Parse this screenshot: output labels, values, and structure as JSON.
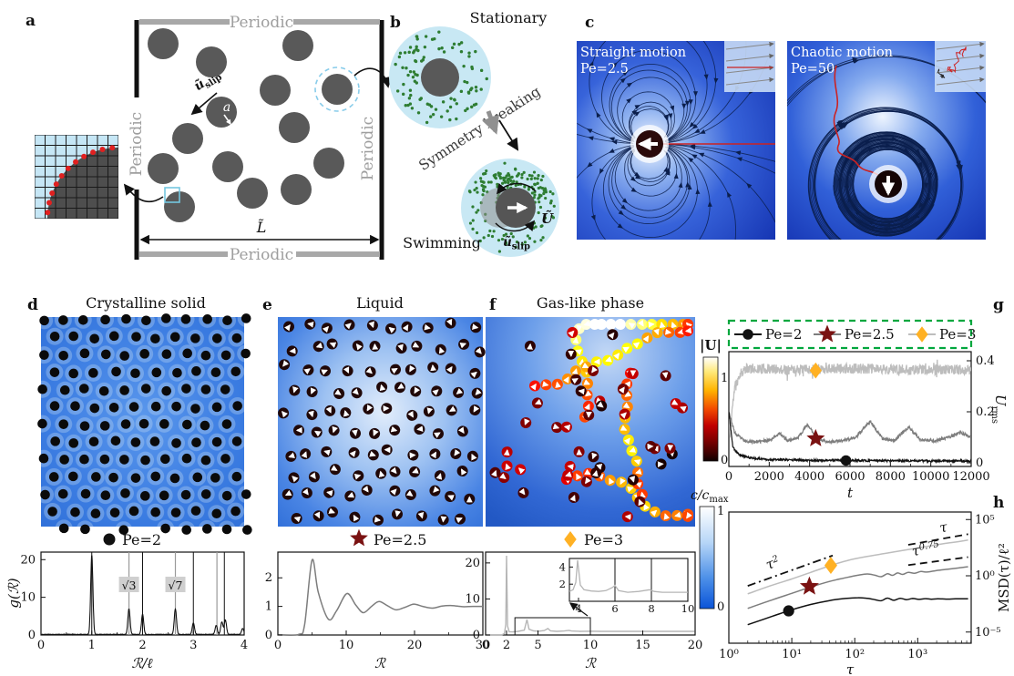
{
  "panel_a": {
    "label": "a",
    "periodic": "Periodic",
    "u_slip_base": "ũ",
    "u_slip_sub": "slip",
    "radius_label": "a",
    "length_label": "L̃"
  },
  "panel_b": {
    "label": "b",
    "stationary": "Stationary",
    "symmetry_breaking": "Symmetry breaking",
    "swimming": "Swimming",
    "u_slip_base": "ũ",
    "u_slip_sub": "slip",
    "velocity_label": "Ũ"
  },
  "panel_c": {
    "label": "c",
    "left_title": "Straight motion",
    "left_pe": "Pe=2.5",
    "right_title": "Chaotic motion",
    "right_pe": "Pe=50"
  },
  "panel_d": {
    "label": "d",
    "title": "Crystalline solid",
    "legend_label": "Pe=2"
  },
  "panel_e": {
    "label": "e",
    "title": "Liquid",
    "legend_label": "Pe=2.5"
  },
  "panel_f": {
    "label": "f",
    "title": "Gas-like phase",
    "legend_label": "Pe=3",
    "colorbar_u": {
      "title": "|U|",
      "max": "1",
      "min": "0"
    },
    "colorbar_c": {
      "title_base": "c/c",
      "title_sub": "max",
      "max": "1",
      "min": "0"
    }
  },
  "panel_g": {
    "label": "g",
    "ylabel_base": "U",
    "ylabel_sub": "rms"
  },
  "panel_h": {
    "label": "h",
    "ylabel": "MSD(τ)/ℓ²"
  },
  "colors": {
    "particle_gray": "#595959",
    "droplet_blue": "#c8e8f4",
    "solute_green": "#2e7d32",
    "trajectory_red": "#cc2222",
    "dark_red_marker": "#7a1212",
    "orange_marker": "#ffb124",
    "legend_box_green": "#00a73e",
    "curve_black": "#111111",
    "curve_gray": "#7d7d7d",
    "curve_lightgray": "#bdbdbd"
  },
  "chart_data": [
    {
      "id": "g_of_r_crystal",
      "type": "line",
      "series_label": "Pe=2",
      "xlabel": "ℛ/ℓ",
      "ylabel": "g(ℛ)",
      "xlim": [
        0,
        4
      ],
      "ylim": [
        0,
        22
      ],
      "xticks": [
        0,
        1,
        2,
        3,
        4
      ],
      "yticks": [
        0,
        10,
        20
      ],
      "ref_lines_black": [
        1,
        2,
        3,
        3.61
      ],
      "ref_lines_gray": [
        1.732,
        2.646,
        3.464
      ],
      "annotations": [
        {
          "text": "√3",
          "x": 1.732
        },
        {
          "text": "√7",
          "x": 2.646
        }
      ],
      "peaks": [
        [
          1,
          21
        ],
        [
          1.732,
          6.8
        ],
        [
          2,
          5.4
        ],
        [
          2.646,
          6.8
        ],
        [
          3,
          3.1
        ],
        [
          3.45,
          2.4
        ],
        [
          3.56,
          3.3
        ],
        [
          3.63,
          3.9
        ],
        [
          3.97,
          1.6
        ]
      ],
      "baseline": 0.15,
      "peak_sigma": 0.022,
      "line_color": "#111111"
    },
    {
      "id": "g_of_r_liquid",
      "type": "line",
      "series_label": "Pe=2.5",
      "xlabel": "ℛ",
      "ylabel": "",
      "xlim": [
        0,
        30
      ],
      "ylim": [
        0,
        2.9
      ],
      "xticks": [
        0,
        10,
        20,
        30
      ],
      "yticks": [
        0,
        1,
        2
      ],
      "points": [
        [
          0,
          0.01
        ],
        [
          3,
          0.02
        ],
        [
          3.9,
          0.35
        ],
        [
          5,
          2.62
        ],
        [
          5.9,
          1.5
        ],
        [
          7.4,
          0.55
        ],
        [
          8.6,
          0.85
        ],
        [
          10.1,
          1.45
        ],
        [
          11.4,
          1.05
        ],
        [
          12.5,
          0.78
        ],
        [
          13.7,
          1.0
        ],
        [
          14.8,
          1.17
        ],
        [
          16,
          1.03
        ],
        [
          17.3,
          0.88
        ],
        [
          18.6,
          0.97
        ],
        [
          19.9,
          1.08
        ],
        [
          21.2,
          1.0
        ],
        [
          22.6,
          0.94
        ],
        [
          24,
          1.01
        ],
        [
          25.5,
          1.03
        ],
        [
          27,
          0.99
        ],
        [
          28.5,
          1.0
        ],
        [
          30,
          1.0
        ]
      ],
      "line_color": "#7d7d7d"
    },
    {
      "id": "g_of_r_gas",
      "type": "line",
      "series_label": "Pe=3",
      "xlabel": "ℛ",
      "ylabel": "",
      "xlim": [
        0,
        20
      ],
      "ylim": [
        0,
        23
      ],
      "xticks": [
        0,
        2,
        5,
        10,
        15,
        20
      ],
      "yticks": [
        0,
        10,
        20
      ],
      "points": [
        [
          0,
          0.02
        ],
        [
          1.55,
          0.02
        ],
        [
          1.8,
          0.4
        ],
        [
          1.93,
          3
        ],
        [
          2.0,
          22
        ],
        [
          2.1,
          2.5
        ],
        [
          2.25,
          0.9
        ],
        [
          2.6,
          0.85
        ],
        [
          3.1,
          1.0
        ],
        [
          3.7,
          1.35
        ],
        [
          3.95,
          4.3
        ],
        [
          4.15,
          1.6
        ],
        [
          4.6,
          1.15
        ],
        [
          5.1,
          1.05
        ],
        [
          5.6,
          1.25
        ],
        [
          5.95,
          1.8
        ],
        [
          6.2,
          1.15
        ],
        [
          6.8,
          1.0
        ],
        [
          7.5,
          1.1
        ],
        [
          7.95,
          1.3
        ],
        [
          8.2,
          1.1
        ],
        [
          9,
          1.02
        ],
        [
          10,
          1.05
        ],
        [
          11,
          1.0
        ],
        [
          12.5,
          1.0
        ],
        [
          14,
          1.0
        ],
        [
          16,
          1.0
        ],
        [
          18,
          1.0
        ],
        [
          20,
          1.0
        ]
      ],
      "line_color": "#b5b5b5",
      "zoom_rect": [
        2.8,
        0,
        10,
        4.8
      ],
      "inset": {
        "xlim": [
          3.5,
          10
        ],
        "ylim": [
          0,
          5
        ],
        "xticks": [
          4,
          6,
          8,
          10
        ],
        "yticks": [
          2,
          4
        ],
        "ref_lines": [
          6,
          8
        ],
        "points": [
          [
            3.5,
            1.15
          ],
          [
            3.7,
            1.35
          ],
          [
            3.85,
            2.2
          ],
          [
            3.95,
            4.8
          ],
          [
            4.1,
            1.9
          ],
          [
            4.3,
            1.35
          ],
          [
            4.7,
            1.2
          ],
          [
            5.1,
            1.15
          ],
          [
            5.5,
            1.25
          ],
          [
            5.85,
            1.6
          ],
          [
            6.0,
            1.85
          ],
          [
            6.2,
            1.25
          ],
          [
            6.7,
            1.05
          ],
          [
            7.3,
            1.15
          ],
          [
            7.9,
            1.35
          ],
          [
            8.15,
            1.15
          ],
          [
            8.6,
            1.05
          ],
          [
            9.2,
            1.05
          ],
          [
            10,
            1.05
          ]
        ],
        "line_color": "#b5b5b5"
      }
    },
    {
      "id": "urms",
      "type": "line",
      "xlabel": "t",
      "ylabel": "U_rms",
      "xlim": [
        0,
        12000
      ],
      "ylim": [
        -0.05,
        0.44
      ],
      "xticks": [
        0,
        2000,
        4000,
        6000,
        8000,
        10000,
        12000
      ],
      "yticks": [
        0,
        0.2,
        0.4
      ],
      "legend": [
        {
          "label": "Pe=2",
          "line_color": "#111111",
          "marker": "circle",
          "marker_color": "#111111"
        },
        {
          "label": "Pe=2.5",
          "line_color": "#7d7d7d",
          "marker": "star",
          "marker_color": "#7a1212"
        },
        {
          "label": "Pe=3",
          "line_color": "#bdbdbd",
          "marker": "diamond",
          "marker_color": "#ffb124"
        }
      ],
      "series": [
        {
          "name": "Pe=3",
          "color": "#bdbdbd",
          "noise": 0.02,
          "base": [
            [
              0,
              0.18
            ],
            [
              60,
              0.1
            ],
            [
              150,
              0.2
            ],
            [
              300,
              0.3
            ],
            [
              600,
              0.355
            ],
            [
              900,
              0.37
            ],
            [
              3000,
              0.365
            ],
            [
              6000,
              0.37
            ],
            [
              9000,
              0.365
            ],
            [
              12000,
              0.365
            ]
          ],
          "marker": {
            "shape": "diamond",
            "x": 4300,
            "y": 0.362,
            "color": "#ffb124"
          }
        },
        {
          "name": "Pe=2.5",
          "color": "#7d7d7d",
          "noise": 0.006,
          "base": [
            [
              0,
              0.2
            ],
            [
              300,
              0.115
            ],
            [
              800,
              0.085
            ],
            [
              1500,
              0.082
            ],
            [
              2100,
              0.092
            ],
            [
              2500,
              0.115
            ],
            [
              2900,
              0.088
            ],
            [
              3400,
              0.097
            ],
            [
              3900,
              0.15
            ],
            [
              4400,
              0.092
            ],
            [
              5000,
              0.082
            ],
            [
              5600,
              0.086
            ],
            [
              6300,
              0.1
            ],
            [
              7000,
              0.163
            ],
            [
              7600,
              0.095
            ],
            [
              8200,
              0.088
            ],
            [
              8900,
              0.14
            ],
            [
              9500,
              0.09
            ],
            [
              10200,
              0.086
            ],
            [
              10800,
              0.098
            ],
            [
              11500,
              0.118
            ],
            [
              12000,
              0.1
            ]
          ],
          "marker": {
            "shape": "star",
            "x": 4300,
            "y": 0.095,
            "color": "#7a1212"
          }
        },
        {
          "name": "Pe=2",
          "color": "#111111",
          "noise": 0.004,
          "base": [
            [
              0,
              0.2
            ],
            [
              200,
              0.06
            ],
            [
              500,
              0.032
            ],
            [
              1000,
              0.02
            ],
            [
              2000,
              0.013
            ],
            [
              4000,
              0.01
            ],
            [
              8000,
              0.008
            ],
            [
              12000,
              0.007
            ]
          ],
          "marker": {
            "shape": "circle",
            "x": 5800,
            "y": 0.009,
            "color": "#111111"
          }
        }
      ]
    },
    {
      "id": "msd",
      "type": "line",
      "xscale": "log",
      "yscale": "log",
      "xlabel": "τ",
      "ylabel": "MSD(τ)/ℓ²",
      "xlim_exp": [
        0.26,
        3.85
      ],
      "ylim_exp": [
        -5.3,
        5.3
      ],
      "xticks": [
        {
          "exp": 0,
          "label": "10⁰"
        },
        {
          "exp": 1,
          "label": "10¹"
        },
        {
          "exp": 2,
          "label": "10²"
        },
        {
          "exp": 3,
          "label": "10³"
        }
      ],
      "yticks": [
        {
          "exp": 5,
          "label": "10⁵"
        },
        {
          "exp": 0,
          "label": "10⁰"
        },
        {
          "exp": -5,
          "label": "10⁻⁵"
        }
      ],
      "series": [
        {
          "name": "Pe=3",
          "color": "#bdbdbd",
          "points_exp": [
            [
              0.3,
              -1.6
            ],
            [
              0.7,
              -0.82
            ],
            [
              1.0,
              -0.28
            ],
            [
              1.3,
              0.3
            ],
            [
              1.6,
              0.88
            ],
            [
              1.9,
              1.38
            ],
            [
              2.2,
              1.72
            ],
            [
              2.5,
              2.0
            ],
            [
              2.8,
              2.28
            ],
            [
              3.1,
              2.56
            ],
            [
              3.4,
              2.84
            ],
            [
              3.6,
              3.0
            ],
            [
              3.8,
              3.18
            ]
          ],
          "marker": {
            "shape": "diamond",
            "x_exp": 1.62,
            "y_exp": 0.92,
            "color": "#ffb124"
          }
        },
        {
          "name": "Pe=2.5",
          "color": "#7d7d7d",
          "points_exp": [
            [
              0.3,
              -2.9
            ],
            [
              0.7,
              -2.12
            ],
            [
              1.0,
              -1.56
            ],
            [
              1.3,
              -1.0
            ],
            [
              1.6,
              -0.5
            ],
            [
              1.85,
              -0.18
            ],
            [
              2.05,
              0.05
            ],
            [
              2.2,
              0.16
            ],
            [
              2.32,
              0.05
            ],
            [
              2.42,
              -0.08
            ],
            [
              2.52,
              0.18
            ],
            [
              2.6,
              0.04
            ],
            [
              2.68,
              0.25
            ],
            [
              2.76,
              0.12
            ],
            [
              2.85,
              0.3
            ],
            [
              2.95,
              0.22
            ],
            [
              3.05,
              0.38
            ],
            [
              3.15,
              0.33
            ],
            [
              3.3,
              0.47
            ],
            [
              3.5,
              0.6
            ],
            [
              3.65,
              0.7
            ],
            [
              3.8,
              0.8
            ]
          ],
          "marker": {
            "shape": "star",
            "x_exp": 1.28,
            "y_exp": -0.95,
            "color": "#7a1212"
          }
        },
        {
          "name": "Pe=2",
          "color": "#111111",
          "points_exp": [
            [
              0.3,
              -4.35
            ],
            [
              0.7,
              -3.58
            ],
            [
              1.0,
              -3.02
            ],
            [
              1.3,
              -2.55
            ],
            [
              1.6,
              -2.2
            ],
            [
              1.85,
              -2.02
            ],
            [
              2.05,
              -1.95
            ],
            [
              2.2,
              -2.0
            ],
            [
              2.32,
              -2.12
            ],
            [
              2.42,
              -2.22
            ],
            [
              2.52,
              -1.98
            ],
            [
              2.62,
              -2.18
            ],
            [
              2.72,
              -2.0
            ],
            [
              2.82,
              -2.12
            ],
            [
              2.92,
              -2.02
            ],
            [
              3.02,
              -2.1
            ],
            [
              3.12,
              -2.03
            ],
            [
              3.22,
              -2.08
            ],
            [
              3.32,
              -2.04
            ],
            [
              3.45,
              -2.07
            ],
            [
              3.6,
              -2.05
            ],
            [
              3.8,
              -2.05
            ]
          ],
          "marker": {
            "shape": "circle",
            "x_exp": 0.95,
            "y_exp": -3.12,
            "color": "#111111"
          }
        }
      ],
      "guides": [
        {
          "base": "τ",
          "sup": "2",
          "style": "dashdot",
          "p1": [
            0.3,
            -0.9
          ],
          "p2": [
            1.65,
            1.8
          ],
          "label_at": [
            0.72,
            0.75
          ],
          "label_rot": -20
        },
        {
          "base": "τ",
          "sup": "",
          "style": "dash",
          "p1": [
            2.85,
            2.75
          ],
          "p2": [
            3.8,
            3.7
          ],
          "label_at": [
            3.42,
            3.9
          ],
          "label_rot": -10
        },
        {
          "base": "τ",
          "sup": "0.75",
          "style": "dash",
          "p1": [
            2.85,
            0.95
          ],
          "p2": [
            3.8,
            1.66
          ],
          "label_at": [
            3.14,
            1.98
          ],
          "label_rot": -10
        }
      ]
    }
  ]
}
